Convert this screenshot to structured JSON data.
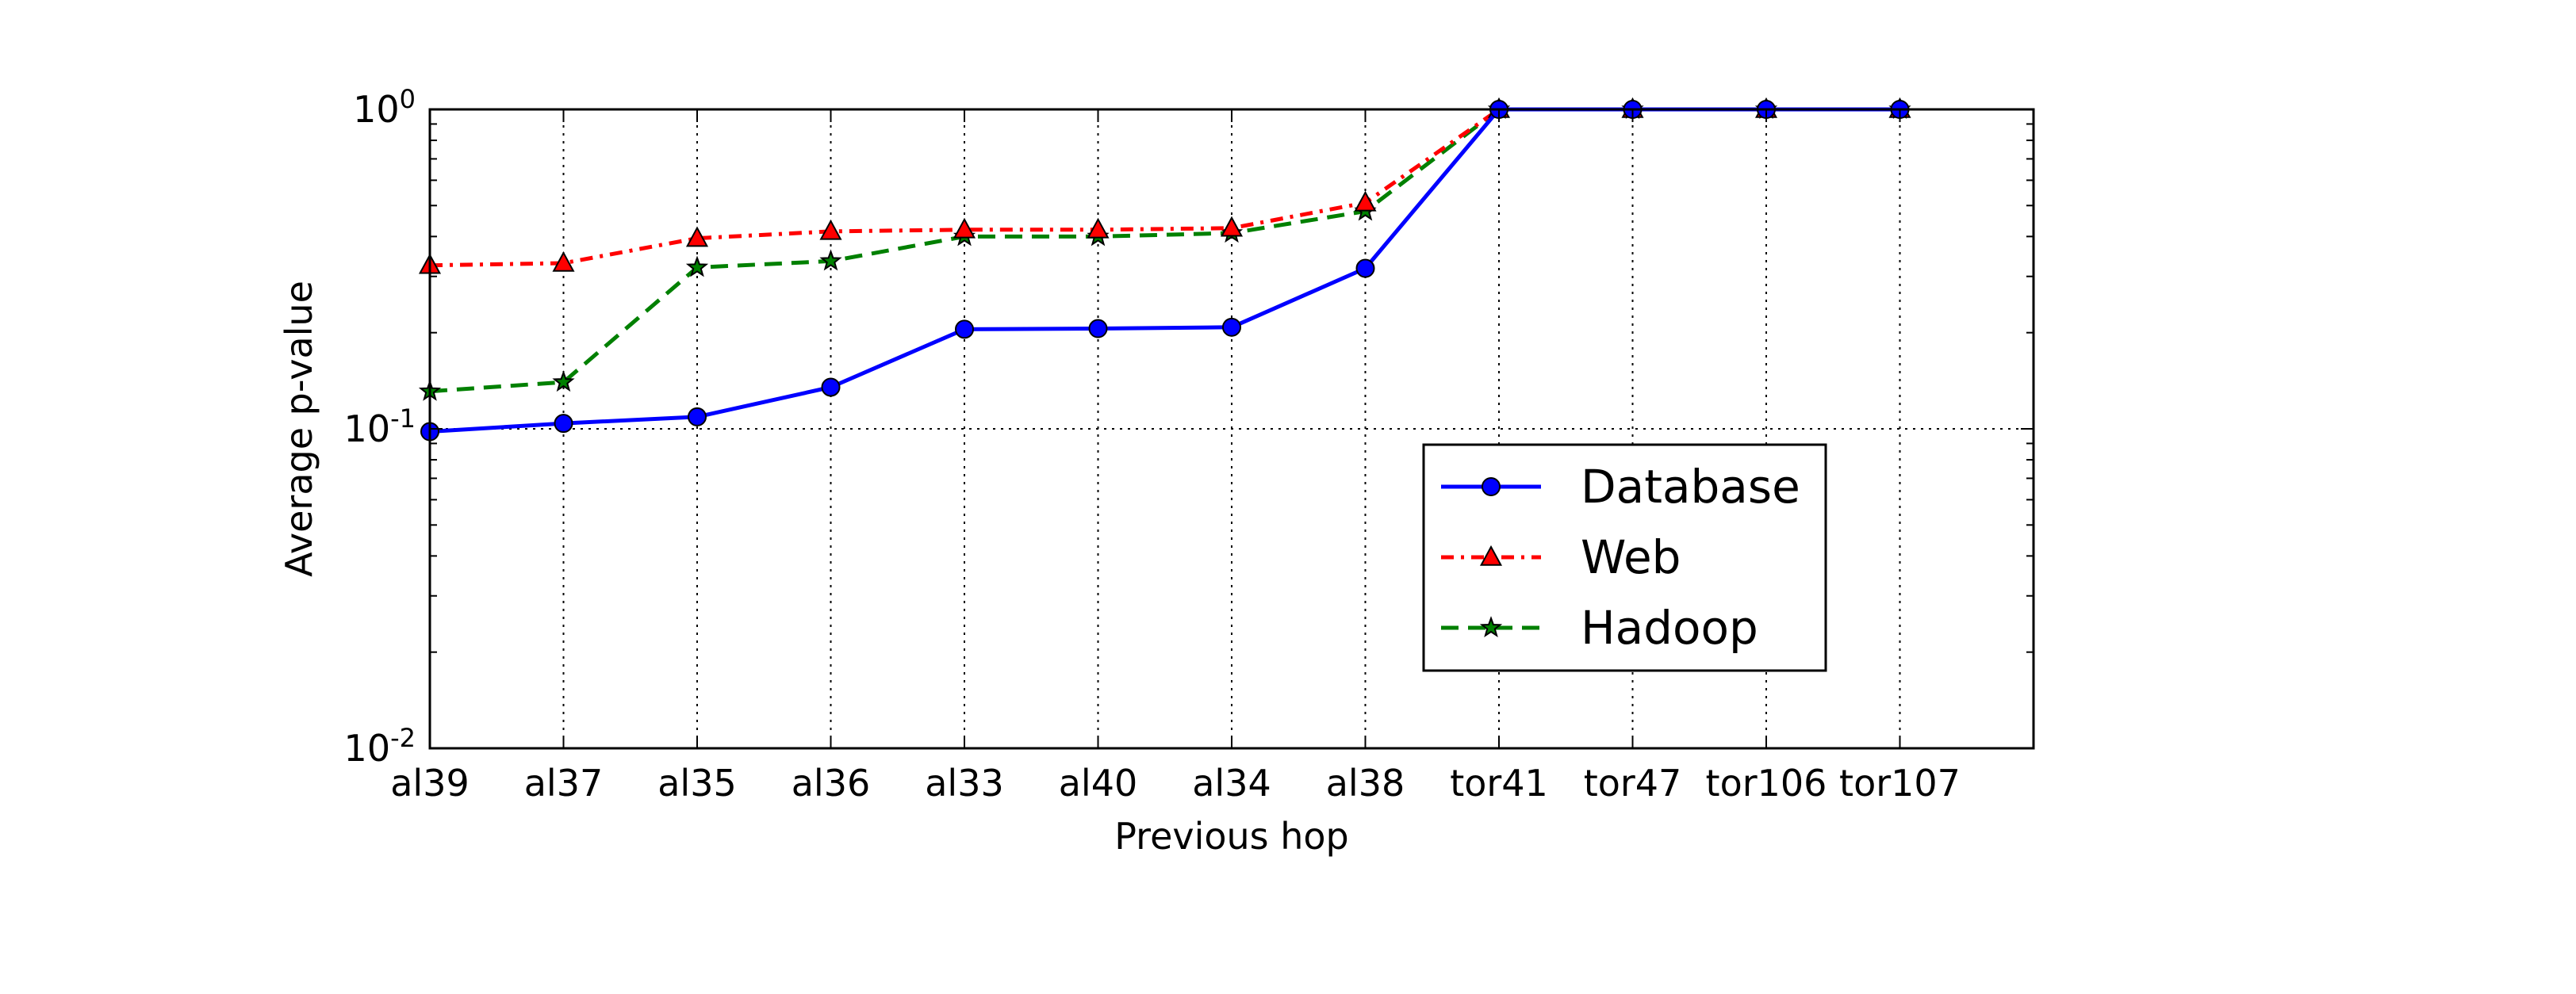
{
  "chart_data": {
    "type": "line",
    "title": "",
    "xlabel": "Previous hop",
    "ylabel": "Average p-value",
    "yscale": "log",
    "ylim": [
      0.01,
      1
    ],
    "y_ticks": [
      {
        "value": 1,
        "base": "10",
        "exp": "0"
      },
      {
        "value": 0.1,
        "base": "10",
        "exp": "-1"
      },
      {
        "value": 0.01,
        "base": "10",
        "exp": "-2"
      }
    ],
    "grid": true,
    "legend_position": "lower-right",
    "categories": [
      "al39",
      "al37",
      "al35",
      "al36",
      "al33",
      "al40",
      "al34",
      "al38",
      "tor41",
      "tor47",
      "tor106",
      "tor107"
    ],
    "series": [
      {
        "name": "Database",
        "color": "#0000ff",
        "linestyle": "solid",
        "marker": "circle",
        "values": [
          0.098,
          0.104,
          0.109,
          0.135,
          0.205,
          0.206,
          0.208,
          0.318,
          1.0,
          1.0,
          1.0,
          1.0
        ]
      },
      {
        "name": "Web",
        "color": "#ff0000",
        "linestyle": "dashdot",
        "marker": "triangle",
        "values": [
          0.325,
          0.33,
          0.395,
          0.415,
          0.42,
          0.42,
          0.425,
          0.51,
          1.0,
          1.0,
          1.0,
          1.0
        ]
      },
      {
        "name": "Hadoop",
        "color": "#008000",
        "linestyle": "dashed",
        "marker": "star",
        "values": [
          0.131,
          0.14,
          0.32,
          0.335,
          0.4,
          0.4,
          0.41,
          0.48,
          1.0,
          1.0,
          1.0,
          1.0
        ]
      }
    ]
  }
}
